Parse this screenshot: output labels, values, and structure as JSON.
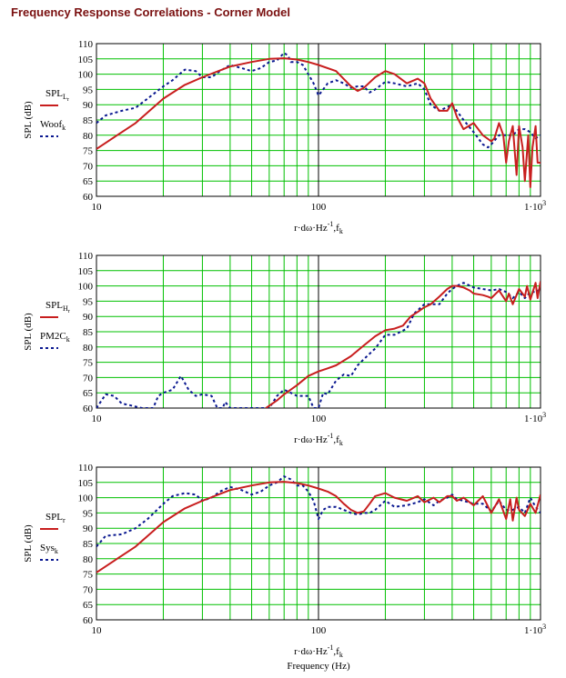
{
  "page_title": "Frequency Response Correlations - Corner Model",
  "colors": {
    "grid": "#00c000",
    "series_solid": "#c81e1e",
    "series_dotted": "#0a1890",
    "title": "#7a1010"
  },
  "x_axis": {
    "scale": "log",
    "range": [
      10,
      1000
    ],
    "tick_labels": [
      "10",
      "100",
      "1·10"
    ],
    "tick_label_superscript": "3"
  },
  "y_axis": {
    "range": [
      60,
      110
    ],
    "tick_labels": [
      "60",
      "65",
      "70",
      "75",
      "80",
      "85",
      "90",
      "95",
      "100",
      "105",
      "110"
    ]
  },
  "bottom_caption": "Frequency (Hz)",
  "chart_data": [
    {
      "type": "line",
      "ylabel": "SPL (dB)",
      "xlabel": "r·dω·Hz⁻¹, f_k",
      "xlabel_parts": {
        "main": "r·dω·Hz",
        "sup": "-1",
        "tail": ",f",
        "sub": "k"
      },
      "xlim": [
        10,
        1000
      ],
      "ylim": [
        60,
        110
      ],
      "x_scale": "log",
      "grid": true,
      "series": [
        {
          "name": "SPL_Lr",
          "legend_main": "SPL",
          "legend_sub": "L",
          "legend_subsub": "r",
          "style": "solid",
          "color": "#c81e1e",
          "x": [
            10,
            15,
            20,
            25,
            30,
            40,
            50,
            60,
            70,
            80,
            90,
            100,
            120,
            140,
            150,
            160,
            180,
            200,
            220,
            250,
            280,
            300,
            320,
            350,
            380,
            400,
            420,
            450,
            500,
            550,
            600,
            620,
            650,
            680,
            700,
            720,
            750,
            780,
            800,
            830,
            850,
            880,
            900,
            920,
            950,
            970,
            1000
          ],
          "y": [
            75.5,
            84,
            92,
            96.5,
            99,
            102.5,
            104,
            105,
            105.2,
            104.8,
            104,
            103,
            101,
            96,
            94.5,
            95.5,
            99,
            101,
            100,
            97,
            98.5,
            97,
            92,
            88,
            88,
            90.5,
            86,
            82,
            84,
            80,
            78,
            79,
            84,
            80,
            71,
            78,
            83,
            67,
            83,
            76,
            65,
            80,
            63,
            76,
            83,
            71,
            71
          ]
        },
        {
          "name": "Woof_k",
          "legend_main": "Woof",
          "legend_sub": "k",
          "legend_subsub": "",
          "style": "dotted",
          "color": "#0a1890",
          "x": [
            10,
            11,
            13,
            15,
            17,
            20,
            22,
            25,
            28,
            30,
            33,
            36,
            40,
            45,
            50,
            55,
            60,
            65,
            70,
            73,
            75,
            80,
            85,
            90,
            95,
            100,
            105,
            110,
            120,
            130,
            140,
            150,
            160,
            170,
            180,
            200,
            220,
            250,
            280,
            300,
            320,
            350,
            400,
            450,
            500,
            550,
            580,
            600,
            650,
            700,
            750,
            800,
            850,
            900,
            950,
            1000
          ],
          "y": [
            84,
            86.5,
            88,
            89,
            92,
            96,
            98,
            101.5,
            101,
            99,
            99,
            101,
            103,
            102,
            101,
            102,
            104,
            104.5,
            107,
            106,
            104,
            104,
            103,
            100,
            97,
            93,
            95,
            97,
            98,
            97,
            95.5,
            96,
            96,
            94,
            95,
            97.5,
            97,
            96,
            97,
            95,
            90,
            88,
            90,
            85,
            81,
            77,
            76,
            77,
            80,
            80,
            80,
            82,
            82,
            81,
            79,
            80
          ]
        }
      ]
    },
    {
      "type": "line",
      "ylabel": "SPL (dB)",
      "xlabel": "r·dω·Hz⁻¹, f_k",
      "xlabel_parts": {
        "main": "r·dω·Hz",
        "sup": "-1",
        "tail": ",f",
        "sub": "k"
      },
      "xlim": [
        10,
        1000
      ],
      "ylim": [
        60,
        110
      ],
      "x_scale": "log",
      "grid": true,
      "series": [
        {
          "name": "SPL_Hr",
          "legend_main": "SPL",
          "legend_sub": "H",
          "legend_subsub": "r",
          "style": "solid",
          "color": "#c81e1e",
          "x": [
            58,
            65,
            70,
            80,
            90,
            100,
            110,
            120,
            140,
            160,
            180,
            200,
            220,
            240,
            260,
            280,
            300,
            320,
            350,
            380,
            400,
            420,
            450,
            480,
            500,
            550,
            580,
            600,
            650,
            700,
            720,
            750,
            800,
            850,
            870,
            900,
            950,
            970,
            1000
          ],
          "y": [
            60,
            62.5,
            64.5,
            67.5,
            70.5,
            72,
            73,
            74,
            77,
            80.5,
            83.5,
            85.5,
            86,
            87,
            90,
            91.5,
            93,
            94,
            96.5,
            99,
            100,
            100,
            99.5,
            98.5,
            97.5,
            97,
            96.5,
            96,
            98.5,
            95,
            97.5,
            94,
            99,
            96.5,
            100,
            95.5,
            101,
            96,
            101.5
          ]
        },
        {
          "name": "PM2C_k",
          "legend_main": "PM2C",
          "legend_sub": "k",
          "legend_subsub": "",
          "style": "dotted",
          "color": "#0a1890",
          "x": [
            10,
            11,
            12,
            13,
            14,
            16,
            18,
            19,
            20,
            22,
            24,
            26,
            28,
            30,
            33,
            35,
            37,
            38,
            40,
            60,
            65,
            70,
            75,
            80,
            85,
            90,
            95,
            100,
            105,
            110,
            120,
            130,
            140,
            150,
            160,
            180,
            200,
            220,
            250,
            270,
            300,
            330,
            350,
            380,
            400,
            420,
            450,
            500,
            550,
            600,
            650,
            700,
            750,
            800,
            850,
            900,
            950,
            1000
          ],
          "y": [
            60,
            64.5,
            64,
            61.5,
            61,
            60,
            60,
            64,
            65,
            66,
            70.5,
            66,
            64,
            64.5,
            64,
            60,
            60,
            62,
            60,
            60,
            64,
            66,
            65,
            64,
            64,
            64,
            60,
            60,
            65,
            64.5,
            69,
            71,
            70.5,
            74,
            76,
            79.5,
            84,
            84,
            86,
            91,
            94,
            94,
            94,
            97.5,
            99,
            100,
            101,
            99.5,
            99,
            98.5,
            99,
            98,
            96,
            98,
            96,
            98,
            98,
            99
          ]
        }
      ]
    },
    {
      "type": "line",
      "ylabel": "SPL (dB)",
      "xlabel": "r·dω·Hz⁻¹, f_k",
      "xlabel_parts": {
        "main": "r·dω·Hz",
        "sup": "-1",
        "tail": ",f",
        "sub": "k"
      },
      "xlim": [
        10,
        1000
      ],
      "ylim": [
        60,
        110
      ],
      "x_scale": "log",
      "grid": true,
      "series": [
        {
          "name": "SPL_r",
          "legend_main": "SPL",
          "legend_sub": "r",
          "legend_subsub": "",
          "style": "solid",
          "color": "#c81e1e",
          "x": [
            10,
            15,
            20,
            25,
            30,
            40,
            50,
            60,
            70,
            80,
            90,
            100,
            110,
            120,
            130,
            140,
            150,
            160,
            170,
            180,
            200,
            220,
            250,
            280,
            300,
            330,
            350,
            380,
            400,
            420,
            450,
            500,
            550,
            600,
            650,
            700,
            730,
            750,
            780,
            800,
            850,
            900,
            950,
            1000
          ],
          "y": [
            75.5,
            84,
            92,
            96.5,
            99,
            102.5,
            104,
            105,
            105.2,
            104.8,
            104,
            103,
            102,
            100.5,
            98,
            96,
            95,
            95.5,
            98,
            100.5,
            101.5,
            100,
            99,
            100.5,
            98.5,
            100,
            98.5,
            100.5,
            100.5,
            99,
            100,
            97.5,
            100.5,
            95,
            99.5,
            93,
            99.5,
            92.5,
            100,
            96,
            94,
            98,
            95,
            101
          ]
        },
        {
          "name": "Sys_k",
          "legend_main": "Sys",
          "legend_sub": "k",
          "legend_subsub": "",
          "style": "dotted",
          "color": "#0a1890",
          "x": [
            10,
            11,
            13,
            15,
            17,
            20,
            22,
            25,
            28,
            30,
            33,
            36,
            40,
            45,
            50,
            55,
            60,
            65,
            70,
            75,
            80,
            85,
            90,
            95,
            100,
            105,
            110,
            120,
            130,
            140,
            150,
            160,
            170,
            180,
            200,
            220,
            250,
            280,
            300,
            330,
            350,
            380,
            400,
            420,
            450,
            500,
            550,
            600,
            650,
            700,
            750,
            800,
            850,
            900,
            950,
            1000
          ],
          "y": [
            84,
            87.5,
            88,
            90,
            93,
            98,
            100.5,
            101.5,
            101,
            99,
            100,
            102,
            103.5,
            102.5,
            101,
            102,
            104,
            105,
            107,
            106,
            104,
            104,
            102,
            99,
            93,
            96,
            97,
            97,
            96,
            95,
            94.5,
            95,
            95,
            96,
            99,
            97,
            97.5,
            98.5,
            99.5,
            97.5,
            99,
            100,
            101,
            99.5,
            99,
            98,
            98,
            95.5,
            99,
            96,
            96,
            97,
            95,
            100,
            97,
            95
          ]
        }
      ]
    }
  ]
}
